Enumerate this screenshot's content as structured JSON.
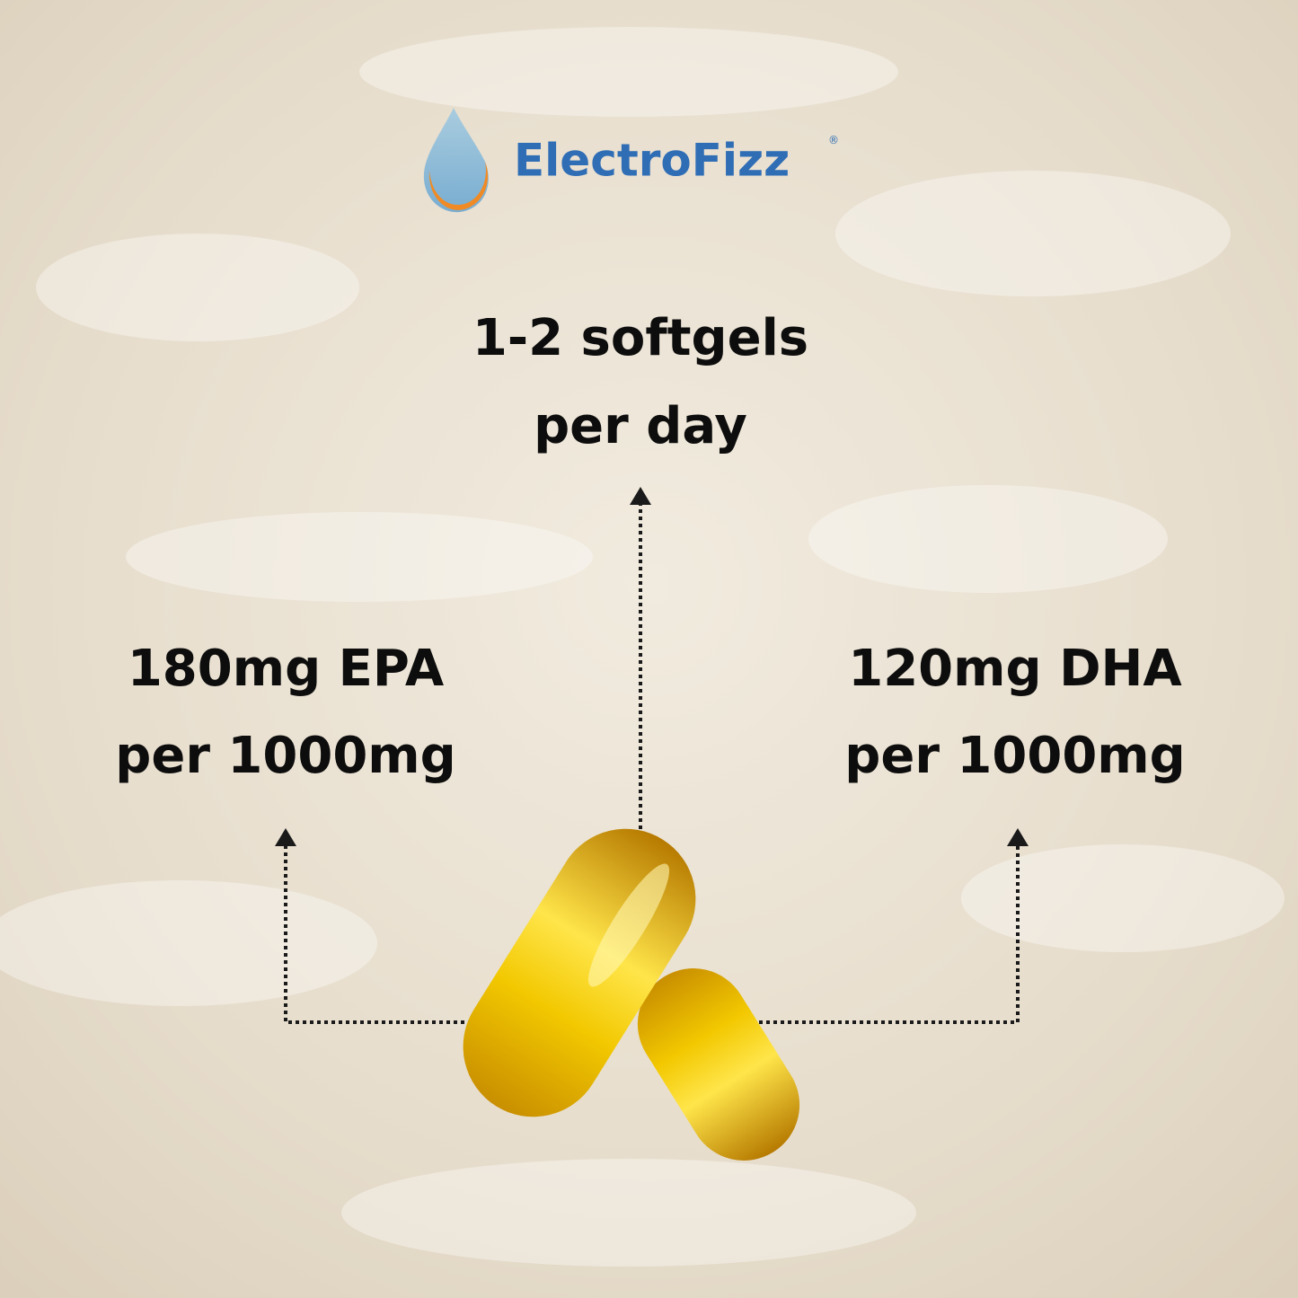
{
  "logo": {
    "name": "ElectroFizz",
    "mark": "®"
  },
  "callouts": [
    {
      "lines": [
        "1-2 softgels",
        "per day"
      ]
    },
    {
      "lines": [
        "180mg EPA",
        "per 1000mg"
      ]
    },
    {
      "lines": [
        "120mg DHA",
        "per 1000mg"
      ]
    }
  ]
}
